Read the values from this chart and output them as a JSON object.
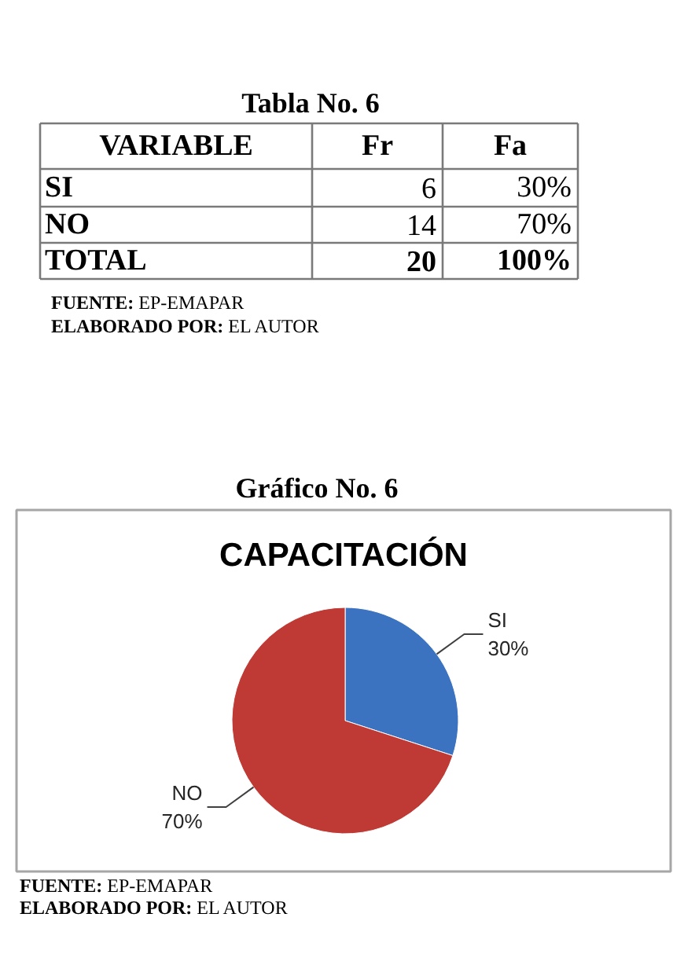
{
  "chart_data": [
    {
      "type": "other",
      "title": "Tabla No. 6",
      "annotations": [
        "VARIABLE",
        "Fr",
        "Fa",
        "SI",
        "6",
        "30%",
        "NO",
        "14",
        "70%",
        "TOTAL",
        "20",
        "100%",
        "FUENTE: EP-EMAPAR",
        "ELABORADO POR: EL AUTOR"
      ]
    },
    {
      "type": "pie",
      "title": "CAPACITACIÓN",
      "categories": [
        "SI",
        "NO"
      ],
      "values": [
        30,
        70
      ],
      "colors": [
        "#3b73c1",
        "#bf3a35"
      ],
      "value_labels": [
        "30%",
        "70%"
      ],
      "annotations": [
        "Gráfico No. 6",
        "FUENTE: EP-EMAPAR",
        "ELABORADO POR: EL AUTOR"
      ]
    }
  ]
}
